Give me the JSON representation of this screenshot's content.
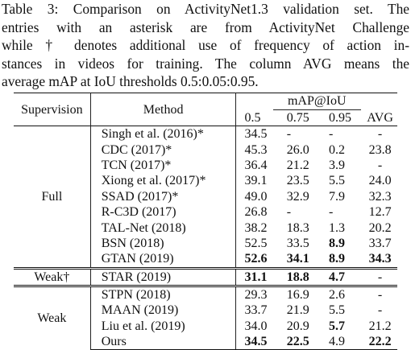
{
  "caption": {
    "lines": [
      "Table 3: Comparison on ActivityNet1.3 validation set. The",
      "entries with an asterisk are from ActivityNet Challenge",
      "while † denotes additional use of frequency of action in-",
      "stances in videos for training. The column AVG means the",
      "average mAP at IoU thresholds 0.5:0.05:0.95."
    ]
  },
  "table": {
    "headers": {
      "supervision": "Supervision",
      "method": "Method",
      "map_group": "mAP@IoU",
      "cols": [
        "0.5",
        "0.75",
        "0.95",
        "AVG"
      ]
    },
    "groups": [
      {
        "label": "Full",
        "rows": [
          {
            "method": "Singh et al. (2016)*",
            "v": [
              "34.5",
              "-",
              "-",
              "-"
            ]
          },
          {
            "method": "CDC (2017)*",
            "v": [
              "45.3",
              "26.0",
              "0.2",
              "23.8"
            ]
          },
          {
            "method": "TCN (2017)*",
            "v": [
              "36.4",
              "21.2",
              "3.9",
              "-"
            ]
          },
          {
            "method": "Xiong et al. (2017)*",
            "v": [
              "39.1",
              "23.5",
              "5.5",
              "24.0"
            ]
          },
          {
            "method": "SSAD (2017)*",
            "v": [
              "49.0",
              "32.9",
              "7.9",
              "32.3"
            ]
          },
          {
            "method": "R-C3D (2017)",
            "v": [
              "26.8",
              "-",
              "-",
              "12.7"
            ]
          },
          {
            "method": "TAL-Net (2018)",
            "v": [
              "38.2",
              "18.3",
              "1.3",
              "20.2"
            ]
          },
          {
            "method": "BSN (2018)",
            "v": [
              "52.5",
              "33.5",
              "8.9",
              "33.7"
            ]
          },
          {
            "method": "GTAN (2019)",
            "v": [
              "52.6",
              "34.1",
              "8.9",
              "34.3"
            ]
          }
        ]
      },
      {
        "label": "Weak†",
        "rows": [
          {
            "method": "STAR (2019)",
            "v": [
              "31.1",
              "18.8",
              "4.7",
              "-"
            ]
          }
        ]
      },
      {
        "label": "Weak",
        "rows": [
          {
            "method": "STPN (2018)",
            "v": [
              "29.3",
              "16.9",
              "2.6",
              "-"
            ]
          },
          {
            "method": "MAAN (2019)",
            "v": [
              "33.7",
              "21.9",
              "5.5",
              "-"
            ]
          },
          {
            "method": "Liu et al. (2019)",
            "v": [
              "34.0",
              "20.9",
              "5.7",
              "21.2"
            ]
          },
          {
            "method": "Ours",
            "v": [
              "34.5",
              "22.5",
              "4.9",
              "22.2"
            ]
          }
        ]
      }
    ]
  }
}
